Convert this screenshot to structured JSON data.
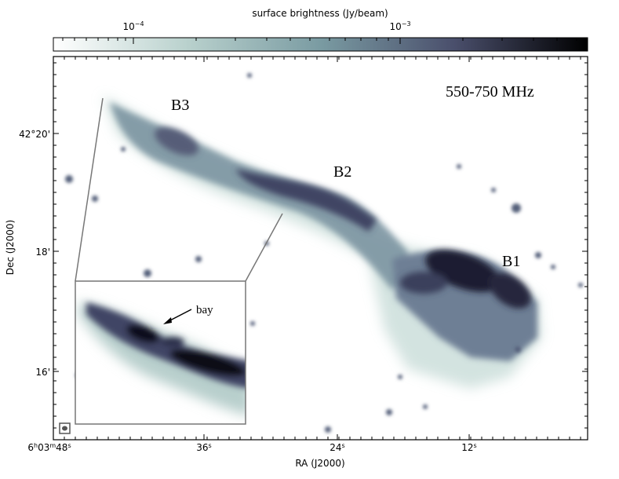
{
  "colorbar": {
    "label": "surface brightness (Jy/beam)",
    "ticks": [
      {
        "base": "10",
        "exp": "−4"
      },
      {
        "base": "10",
        "exp": "−3"
      }
    ],
    "colors": [
      "#ffffff",
      "#b9d1cd",
      "#7a9ba2",
      "#4a4f6c",
      "#000000"
    ]
  },
  "image": {
    "frequency_label": "550-750 MHz",
    "regions": [
      "B3",
      "B2",
      "B1"
    ],
    "inset_annotation": "bay"
  },
  "axes": {
    "xlabel": "RA (J2000)",
    "ylabel": "Dec (J2000)",
    "x_ticks": [
      {
        "h": "6",
        "m": "03",
        "s": "48",
        "first": true
      },
      {
        "s": "36"
      },
      {
        "s": "24"
      },
      {
        "s": "12"
      }
    ],
    "y_ticks": [
      "42°20'",
      "18'",
      "16'"
    ]
  }
}
